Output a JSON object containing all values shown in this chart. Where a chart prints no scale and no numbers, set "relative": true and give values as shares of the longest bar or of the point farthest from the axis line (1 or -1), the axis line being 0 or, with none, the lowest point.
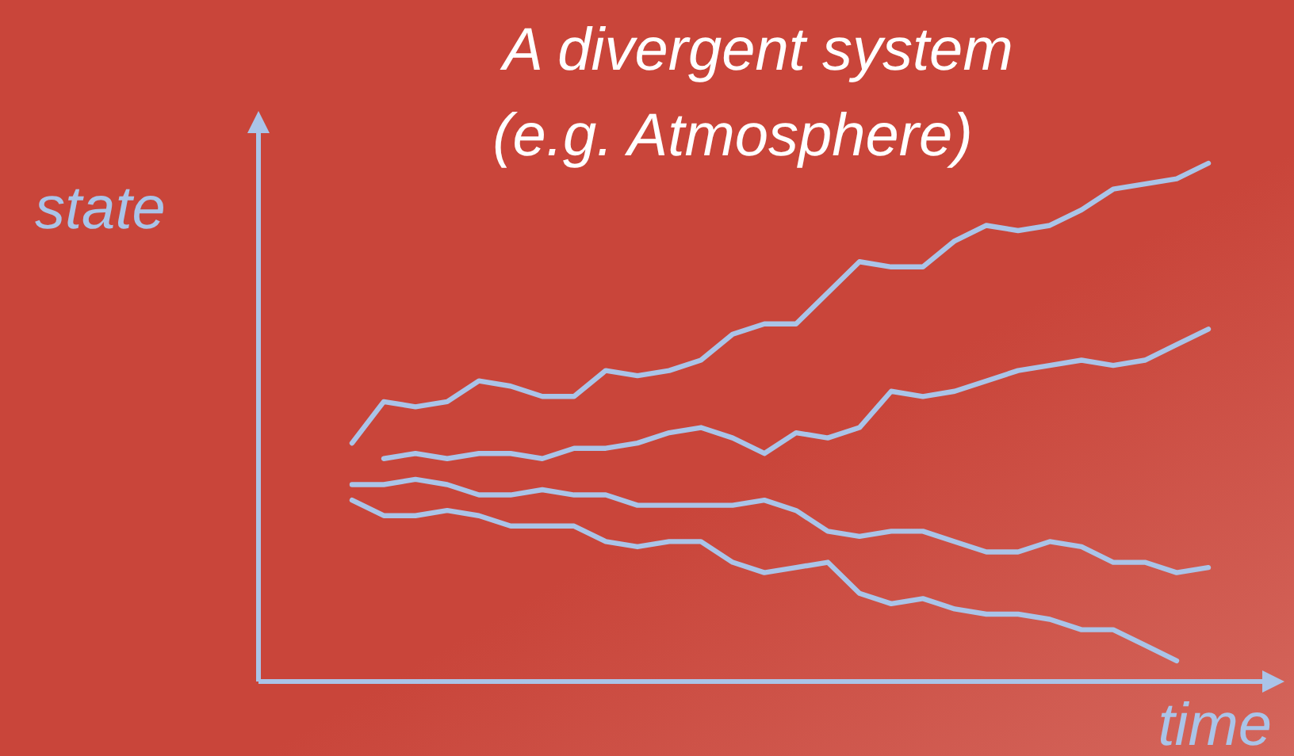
{
  "chart_data": {
    "type": "line",
    "title": "A divergent system",
    "subtitle": "(e.g. Atmosphere)",
    "xlabel": "time",
    "ylabel": "state",
    "relative": true,
    "tick_labels": false,
    "grid": false,
    "marker": "none",
    "line_style": "solid",
    "categories": [
      null,
      null,
      null,
      null,
      null,
      null,
      null,
      null,
      null,
      null,
      null,
      null,
      null,
      null,
      null,
      null,
      null,
      null,
      null,
      null,
      null,
      null,
      null,
      null,
      null,
      null,
      null,
      null
    ],
    "series": [
      {
        "color": "#aac4e8",
        "values": [
          0.46,
          0.54,
          0.53,
          0.54,
          0.58,
          0.57,
          0.55,
          0.55,
          0.6,
          0.59,
          0.6,
          0.62,
          0.67,
          0.69,
          0.69,
          0.75,
          0.81,
          0.8,
          0.8,
          0.85,
          0.88,
          0.87,
          0.88,
          0.91,
          0.95,
          0.96,
          0.97,
          1
        ]
      },
      {
        "color": "#aac4e8",
        "values": [
          null,
          0.43,
          0.44,
          0.43,
          0.44,
          0.44,
          0.43,
          0.45,
          0.45,
          0.46,
          0.48,
          0.49,
          0.47,
          0.44,
          0.48,
          0.47,
          0.49,
          0.56,
          0.55,
          0.56,
          0.58,
          0.6,
          0.61,
          0.62,
          0.61,
          0.62,
          0.65,
          0.68
        ]
      },
      {
        "color": "#aac4e8",
        "values": [
          0.38,
          0.38,
          0.39,
          0.38,
          0.36,
          0.36,
          0.37,
          0.36,
          0.36,
          0.34,
          0.34,
          0.34,
          0.34,
          0.35,
          0.33,
          0.29,
          0.28,
          0.29,
          0.29,
          0.27,
          0.25,
          0.25,
          0.27,
          0.26,
          0.23,
          0.23,
          0.21,
          0.22
        ]
      },
      {
        "color": "#aac4e8",
        "values": [
          0.35,
          0.32,
          0.32,
          0.33,
          0.32,
          0.3,
          0.3,
          0.3,
          0.27,
          0.26,
          0.27,
          0.27,
          0.23,
          0.21,
          0.22,
          0.23,
          0.17,
          0.15,
          0.16,
          0.14,
          0.13,
          0.13,
          0.12,
          0.1,
          0.1,
          0.07,
          0.04,
          null
        ]
      }
    ]
  }
}
